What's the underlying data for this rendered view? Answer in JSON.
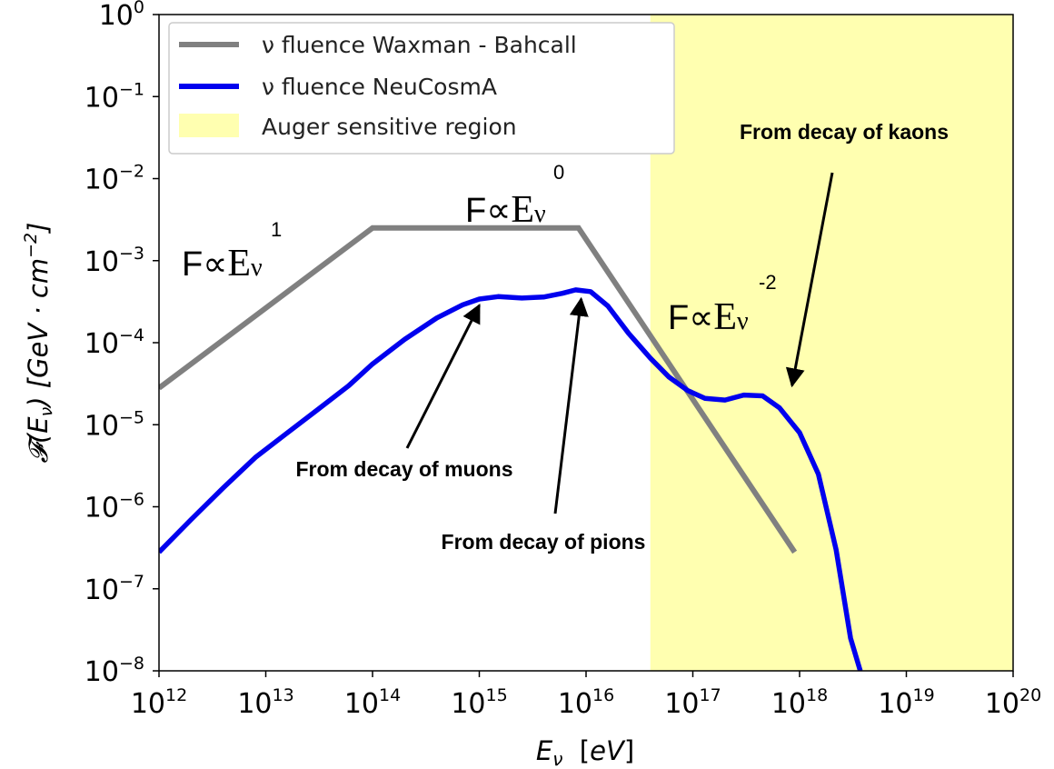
{
  "chart_data": {
    "type": "line",
    "xlabel": "E_ν [eV]",
    "ylabel": "F(E_ν) [GeV·cm⁻²]",
    "x_scale": "log",
    "y_scale": "log",
    "xlim": [
      1000000000000.0,
      1e+20
    ],
    "ylim": [
      1e-08,
      1
    ],
    "x_ticks": [
      {
        "base": "10",
        "exp": "12",
        "value": 1000000000000.0
      },
      {
        "base": "10",
        "exp": "13",
        "value": 10000000000000.0
      },
      {
        "base": "10",
        "exp": "14",
        "value": 100000000000000.0
      },
      {
        "base": "10",
        "exp": "15",
        "value": 1000000000000000.0
      },
      {
        "base": "10",
        "exp": "16",
        "value": 1e+16
      },
      {
        "base": "10",
        "exp": "17",
        "value": 1e+17
      },
      {
        "base": "10",
        "exp": "18",
        "value": 1e+18
      },
      {
        "base": "10",
        "exp": "19",
        "value": 1e+19
      },
      {
        "base": "10",
        "exp": "20",
        "value": 1e+20
      }
    ],
    "y_ticks": [
      {
        "base": "10",
        "exp": "0",
        "value": 1
      },
      {
        "base": "10",
        "exp": "−1",
        "value": 0.1
      },
      {
        "base": "10",
        "exp": "−2",
        "value": 0.01
      },
      {
        "base": "10",
        "exp": "−3",
        "value": 0.001
      },
      {
        "base": "10",
        "exp": "−4",
        "value": 0.0001
      },
      {
        "base": "10",
        "exp": "−5",
        "value": 1e-05
      },
      {
        "base": "10",
        "exp": "−6",
        "value": 1e-06
      },
      {
        "base": "10",
        "exp": "−7",
        "value": 1e-07
      },
      {
        "base": "10",
        "exp": "−8",
        "value": 1e-08
      }
    ],
    "grid": false,
    "legend_position": "top-left",
    "series": [
      {
        "name": "ν fluence Waxman - Bahcall",
        "color": "#808080",
        "x": [
          1000000000000.0,
          100000000000000.0,
          8500000000000000.0,
          9e+17
        ],
        "y": [
          2.8e-05,
          0.0025,
          0.0025,
          2.8e-07
        ]
      },
      {
        "name": "ν fluence NeuCosmA",
        "color": "#0000ee",
        "x": [
          1000000000000.0,
          2000000000000.0,
          4000000000000.0,
          8000000000000.0,
          15000000000000.0,
          30000000000000.0,
          60000000000000.0,
          100000000000000.0,
          200000000000000.0,
          400000000000000.0,
          700000000000000.0,
          1000000000000000.0,
          1500000000000000.0,
          2500000000000000.0,
          4000000000000000.0,
          6000000000000000.0,
          8000000000000000.0,
          1.1e+16,
          1.6e+16,
          2.5e+16,
          4e+16,
          6e+16,
          9e+16,
          1.3e+17,
          2e+17,
          3e+17,
          4.5e+17,
          6.5e+17,
          1e+18,
          1.5e+18,
          2.2e+18,
          3e+18,
          3.7e+18
        ],
        "y": [
          2.8e-07,
          7e-07,
          1.7e-06,
          4e-06,
          7.5e-06,
          1.5e-05,
          3e-05,
          5.5e-05,
          0.00011,
          0.0002,
          0.00029,
          0.00034,
          0.000365,
          0.00035,
          0.00036,
          0.0004,
          0.00044,
          0.00042,
          0.00028,
          0.00013,
          6.5e-05,
          3.8e-05,
          2.6e-05,
          2.1e-05,
          2e-05,
          2.3e-05,
          2.25e-05,
          1.6e-05,
          8e-06,
          2.5e-06,
          3e-07,
          2.5e-08,
          1e-08
        ]
      }
    ],
    "region": {
      "name": "Auger sensitive region",
      "color": "#ffffb0",
      "x_from": 4e+16,
      "x_to": 1e+20
    },
    "annotations": [
      {
        "text": "From decay of muons",
        "arrow_to_x": 1000000000000000.0,
        "arrow_to_y": 0.00035
      },
      {
        "text": "From decay of pions",
        "arrow_to_x": 9000000000000000.0,
        "arrow_to_y": 0.00042
      },
      {
        "text": "From decay of kaons",
        "arrow_to_x": 8.5e+17,
        "arrow_to_y": 3e-05
      }
    ],
    "formulas": [
      {
        "prefix": "F∝",
        "base": "E",
        "sub": "ν",
        "exp": "1"
      },
      {
        "prefix": "F∝",
        "base": "E",
        "sub": "ν",
        "exp": "0"
      },
      {
        "prefix": "F∝",
        "base": "E",
        "sub": "ν",
        "exp": "-2"
      }
    ]
  }
}
